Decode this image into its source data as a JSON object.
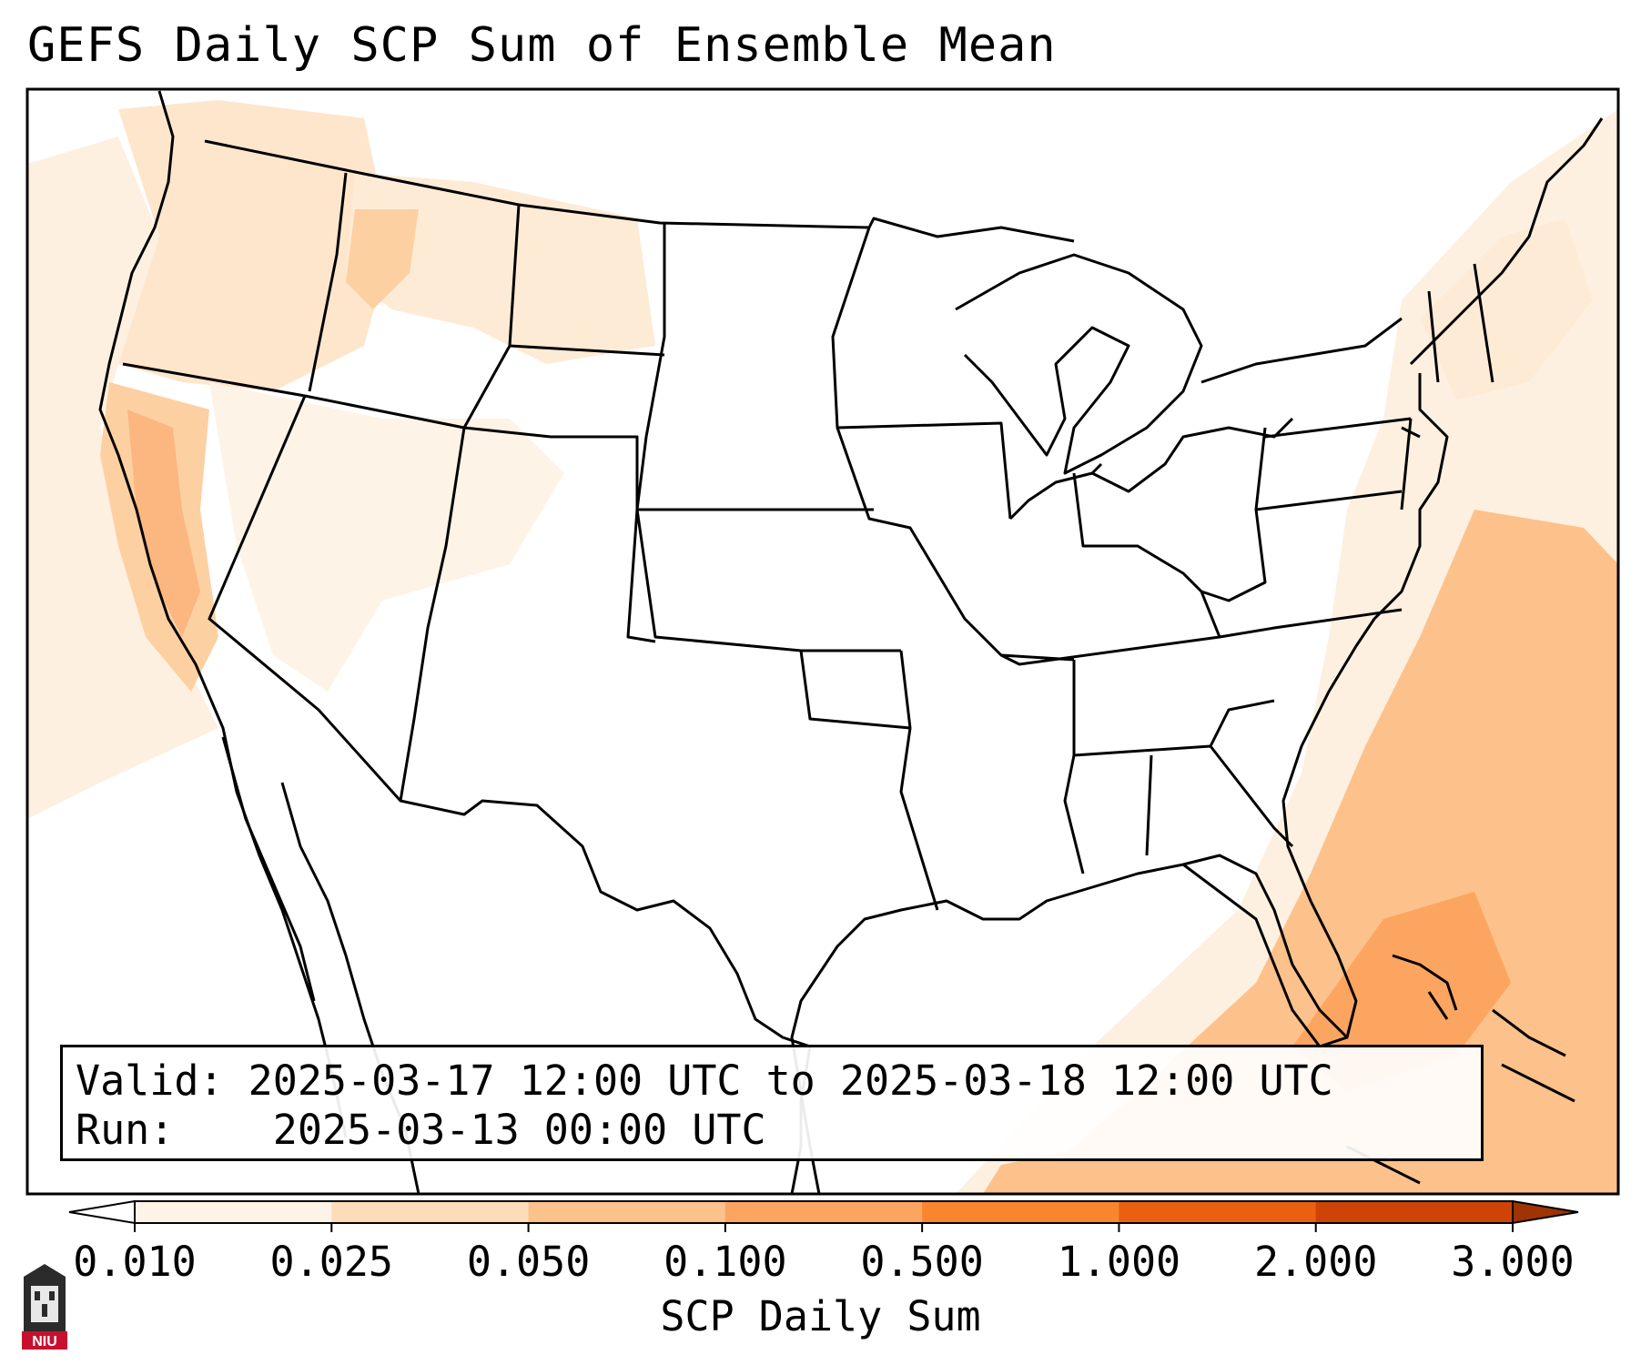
{
  "title": "GEFS Daily SCP Sum of Ensemble Mean",
  "info": {
    "valid_label": "Valid:",
    "valid_value": "2025-03-17 12:00 UTC to 2025-03-18 12:00 UTC",
    "run_label": "Run:",
    "run_value": "2025-03-13 00:00 UTC"
  },
  "colorbar": {
    "label": "SCP Daily Sum",
    "ticks": [
      "0.010",
      "0.025",
      "0.050",
      "0.100",
      "0.500",
      "1.000",
      "2.000",
      "3.000"
    ],
    "colors": [
      "#fef3e7",
      "#fddcb9",
      "#fdc18b",
      "#fca561",
      "#f9852f",
      "#ea5f12",
      "#cd4406"
    ],
    "over_color": "#9f3303",
    "under_color": "#ffffff"
  },
  "logo": {
    "text": "NIU"
  }
}
